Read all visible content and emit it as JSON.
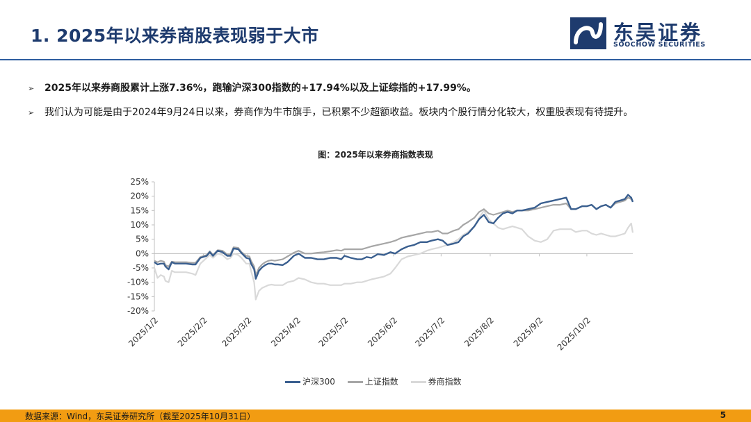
{
  "header": {
    "title": "1. 2025年以来券商股表现弱于大市",
    "logo_cn": "东吴证券",
    "logo_en": "SOOCHOW SECURITIES",
    "brand_color": "#1e3b6e"
  },
  "bullets": [
    {
      "marker": "➢",
      "text": "2025年以来券商股累计上涨7.36%，跑输沪深300指数的+17.94%以及上证综指的+17.99%。"
    },
    {
      "marker": "➢",
      "text": "我们认为可能是由于2024年9月24日以来，券商作为牛市旗手，已积累不少超额收益。板块内个股行情分化较大，权重股表现有待提升。"
    }
  ],
  "footer": {
    "source": "数据来源：Wind，东吴证券研究所（截至2025年10月31日）",
    "page": "5",
    "color": "#f29c12"
  },
  "chart_data": {
    "type": "line",
    "title": "图：2025年以来券商指数表现",
    "xlabel": "",
    "ylabel": "",
    "ylim": [
      -20,
      25
    ],
    "yticks": [
      "25%",
      "20%",
      "15%",
      "10%",
      "5%",
      "0%",
      "-5%",
      "-10%",
      "-15%",
      "-20%"
    ],
    "xticks": [
      "2025/1/2",
      "2025/2/2",
      "2025/3/2",
      "2025/4/2",
      "2025/5/2",
      "2025/6/2",
      "2025/7/2",
      "2025/8/2",
      "2025/9/2",
      "2025/10/2"
    ],
    "x": [
      0,
      2,
      4,
      6,
      7,
      9,
      11,
      13,
      20,
      24,
      26,
      29,
      33,
      35,
      37,
      40,
      43,
      46,
      48,
      50,
      53,
      55,
      58,
      60,
      61,
      63,
      64,
      66,
      68,
      70,
      72,
      74,
      76,
      78,
      81,
      84,
      88,
      91,
      95,
      99,
      103,
      107,
      111,
      115,
      118,
      120,
      124,
      128,
      131,
      134,
      137,
      141,
      145,
      149,
      152,
      156,
      160,
      164,
      168,
      172,
      175,
      179,
      182,
      185,
      189,
      192,
      195,
      198,
      202,
      205,
      208,
      211,
      214,
      217,
      220,
      223,
      226,
      229,
      232,
      236,
      240,
      244,
      248,
      252,
      256,
      260,
      263,
      266,
      270,
      273,
      276,
      279,
      282,
      285,
      288,
      291,
      294,
      297,
      299,
      301,
      302
    ],
    "legend_position": "bottom",
    "series": [
      {
        "name": "沪深300",
        "color": "#3a5f8f",
        "values": [
          -3,
          -3.8,
          -3.5,
          -3.5,
          -4.5,
          -5.5,
          -3,
          -3.5,
          -3.5,
          -3.8,
          -3.8,
          -1.5,
          -0.8,
          0.5,
          -0.8,
          1,
          0.5,
          -0.8,
          -0.8,
          1.8,
          1.5,
          0.2,
          -1.5,
          -1.8,
          -3.5,
          -5.5,
          -8.8,
          -6,
          -4.8,
          -4,
          -3.5,
          -3.5,
          -3.8,
          -3.8,
          -4,
          -3,
          -0.8,
          0,
          -1.5,
          -1.5,
          -2,
          -2,
          -1.5,
          -1.5,
          -2,
          -0.8,
          -1.5,
          -2,
          -2,
          -1.2,
          -1.5,
          -0.2,
          -0.5,
          0.5,
          0,
          1.5,
          2.5,
          3,
          4,
          4,
          4.5,
          5,
          4.5,
          3,
          3.5,
          4,
          6,
          7,
          9.5,
          12,
          13.5,
          11,
          10.5,
          12.5,
          14,
          14.5,
          14,
          15,
          15,
          15.5,
          16,
          17.5,
          18,
          18.5,
          19,
          19.5,
          15.5,
          15.5,
          16.5,
          16.5,
          17,
          15.5,
          16.5,
          17,
          16,
          18,
          18.5,
          19,
          20.5,
          19.5,
          18
        ]
      },
      {
        "name": "上证指数",
        "color": "#a6a6a6",
        "values": [
          -2.5,
          -3,
          -2.5,
          -2.8,
          -4,
          -4.5,
          -2.8,
          -3,
          -3,
          -3.2,
          -3.2,
          -1.2,
          -0.5,
          0.8,
          -0.5,
          1.2,
          1,
          -0.3,
          -0.2,
          2.2,
          2,
          0.5,
          -0.8,
          -1,
          -2.5,
          -4.5,
          -7.5,
          -5,
          -3.8,
          -3,
          -2.5,
          -2.3,
          -2.5,
          -2.3,
          -2,
          -1,
          0.3,
          1,
          0,
          0,
          0.3,
          0.5,
          0.8,
          1.2,
          1,
          1.5,
          1.5,
          1.5,
          1.5,
          2,
          2.5,
          3,
          3.5,
          4,
          4.5,
          5.5,
          6,
          6.5,
          7,
          7.5,
          7.5,
          8,
          7,
          7,
          8,
          8.5,
          10,
          11,
          12.5,
          14.5,
          15.5,
          14,
          13.5,
          14,
          14.5,
          15,
          14.5,
          15,
          15,
          15,
          15.5,
          16,
          16.5,
          17,
          17,
          17.5,
          15.5,
          15.5,
          16.5,
          16.5,
          17,
          15.5,
          16.5,
          17,
          16,
          17.5,
          18,
          18.5,
          19.5,
          19,
          18.2
        ]
      },
      {
        "name": "券商指数",
        "color": "#d9d9d9",
        "values": [
          -5,
          -8.5,
          -7.5,
          -8,
          -9.5,
          -10,
          -6,
          -6.5,
          -6.5,
          -7,
          -7.5,
          -3.5,
          -1.5,
          -0.5,
          -1.5,
          0,
          -0.5,
          -2,
          -1.5,
          0,
          -0.5,
          -1.5,
          -3.5,
          -3.5,
          -6,
          -10,
          -16,
          -13,
          -12,
          -11.5,
          -11,
          -10.8,
          -11,
          -11,
          -11,
          -10,
          -9.5,
          -8.5,
          -9,
          -10,
          -10.5,
          -10.5,
          -11,
          -11,
          -11,
          -10.5,
          -10.5,
          -10,
          -10,
          -9.5,
          -9,
          -8.5,
          -8,
          -7,
          -5,
          -2,
          -1,
          -0.5,
          0,
          1,
          1.5,
          2,
          2.5,
          3,
          4,
          5,
          6.5,
          7.5,
          9.5,
          12.5,
          15,
          12,
          10.5,
          9,
          8.5,
          9,
          9.5,
          9,
          8.5,
          6,
          4.5,
          4,
          5,
          8,
          8.5,
          8.5,
          8.5,
          7.5,
          8,
          8,
          7,
          6.5,
          7,
          6.5,
          6,
          6,
          6.5,
          7,
          9,
          10.5,
          7.3
        ]
      }
    ]
  }
}
